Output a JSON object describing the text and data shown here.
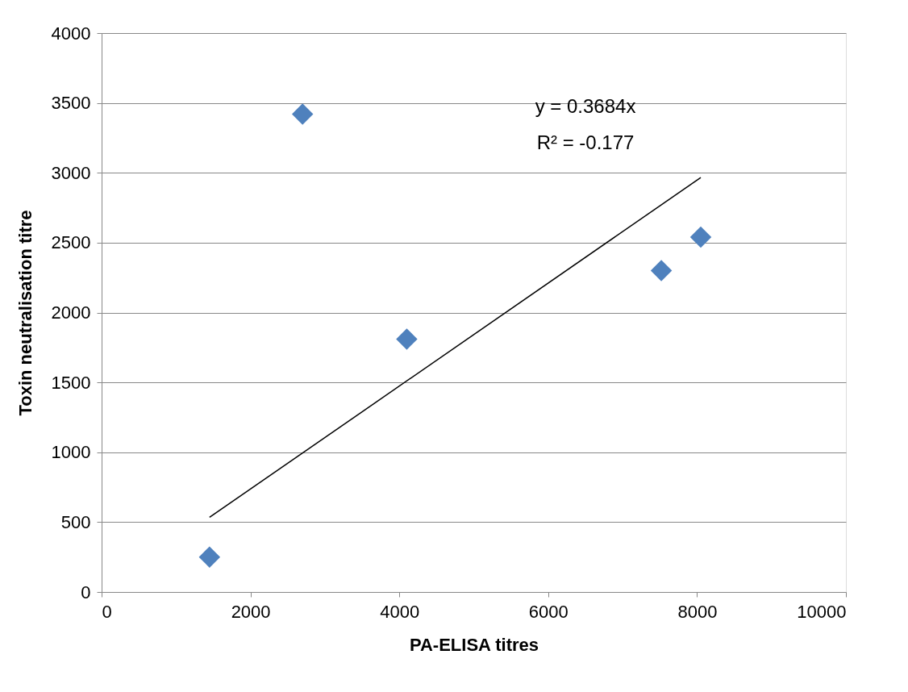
{
  "chart_data": {
    "type": "scatter",
    "xlabel": "PA-ELISA titres",
    "ylabel": "Toxin neutralisation  titre",
    "xlim": [
      0,
      10000
    ],
    "xticks": [
      0,
      2000,
      4000,
      6000,
      8000,
      10000
    ],
    "ylim": [
      0,
      4000
    ],
    "yticks": [
      0,
      500,
      1000,
      1500,
      2000,
      2500,
      3000,
      3500,
      4000
    ],
    "grid": "y",
    "marker": "diamond",
    "legend": false,
    "annotations": [
      "y = 0.3684x",
      "R² = -0.177"
    ],
    "series": [
      {
        "color": "#4f81bd",
        "x": [
          1450,
          2700,
          4100,
          7520,
          8050
        ],
        "values": [
          250,
          3420,
          1810,
          2300,
          2540
        ]
      },
      {
        "type": "line",
        "marker": "none",
        "color": "#000000",
        "x": [
          1450,
          8050
        ],
        "values": [
          534,
          2966
        ]
      }
    ]
  }
}
